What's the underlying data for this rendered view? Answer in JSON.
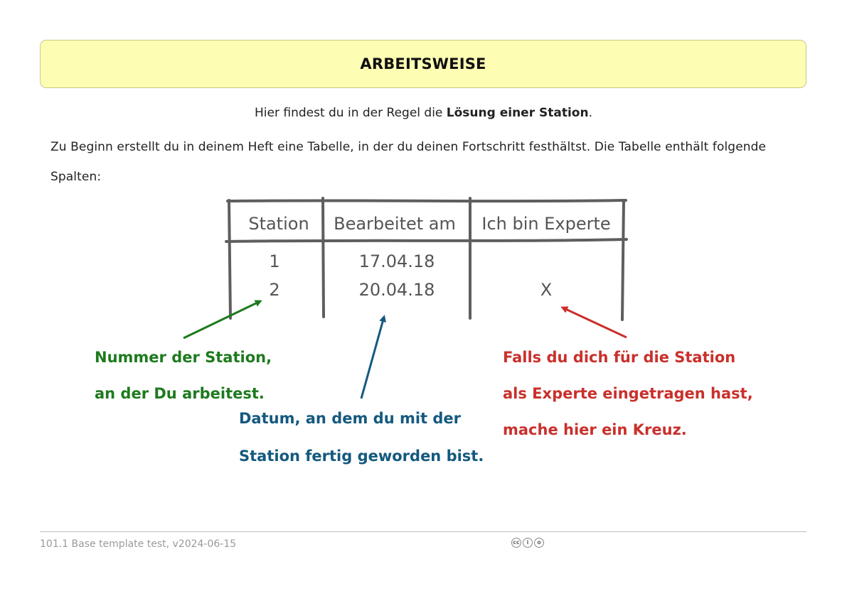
{
  "banner": {
    "title": "ARBEITSWEISE"
  },
  "intro": {
    "before": "Hier findest du in der Regel die ",
    "bold": "Lösung einer Station",
    "after": "."
  },
  "paragraph": "Zu Beginn erstellt du in deinem Heft eine Tabelle, in der du deinen Fortschritt festhältst. Die Tabelle enthält folgende Spalten:",
  "sketch_table": {
    "headers": [
      "Station",
      "Bearbeitet am",
      "Ich bin Experte"
    ],
    "rows": [
      [
        "1",
        "17.04.18",
        ""
      ],
      [
        "2",
        "20.04.18",
        "X"
      ]
    ]
  },
  "annotations": {
    "station": {
      "line1": "Nummer der Station,",
      "line2": "an der Du arbeitest.",
      "color": "#1e7a1e"
    },
    "date": {
      "line1": "Datum, an dem du mit der",
      "line2": "Station fertig geworden bist.",
      "color": "#14597f"
    },
    "expert": {
      "line1": "Falls du dich für die Station",
      "line2": "als Experte eingetragen hast,",
      "line3": "mache hier ein Kreuz.",
      "color": "#c9302c"
    }
  },
  "footer": {
    "left_text": "101.1 Base template test, v2024-06-15",
    "license_icon": "cc-by-sa-icon"
  }
}
